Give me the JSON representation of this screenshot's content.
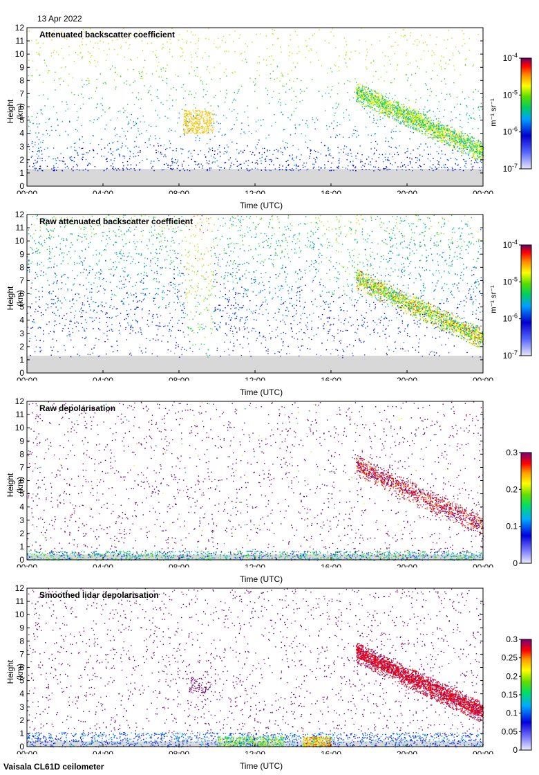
{
  "date": "13 Apr 2022",
  "footer": "Vaisala CL61D ceilometer",
  "chart_data": [
    {
      "type": "heatmap",
      "title": "Attenuated backscatter coefficient",
      "xlabel": "Time (UTC)",
      "ylabel": "Height (km)",
      "x_ticks": [
        "00:00",
        "04:00",
        "08:00",
        "12:00",
        "16:00",
        "20:00",
        "00:00"
      ],
      "y_ticks": [
        "0",
        "1",
        "2",
        "3",
        "4",
        "5",
        "6",
        "7",
        "8",
        "9",
        "10",
        "11",
        "12"
      ],
      "xlim": [
        0,
        24
      ],
      "ylim": [
        0,
        12
      ],
      "colorbar": {
        "scale": "log",
        "range": [
          1e-07,
          0.0001
        ],
        "ticks": [
          {
            "base": "10",
            "exp": "-4"
          },
          {
            "base": "10",
            "exp": "-5"
          },
          {
            "base": "10",
            "exp": "-6"
          },
          {
            "base": "10",
            "exp": "-7"
          }
        ],
        "unit": "m⁻¹ sr⁻¹"
      },
      "features": [
        {
          "t_start": 17.5,
          "t_end": 24.0,
          "h_start": 7.5,
          "h_end": 2.5,
          "intensity": "1e-6 to 1e-4",
          "desc": "descending cloud layer"
        },
        {
          "t_start": 8.0,
          "t_end": 9.8,
          "h_start": 4.0,
          "h_end": 6.0,
          "intensity": "~1e-5",
          "desc": "thin cloud patch"
        }
      ]
    },
    {
      "type": "heatmap",
      "title": "Raw attenuated backscatter coefficient",
      "xlabel": "Time (UTC)",
      "ylabel": "Height (km)",
      "x_ticks": [
        "00:00",
        "04:00",
        "08:00",
        "12:00",
        "16:00",
        "20:00",
        "00:00"
      ],
      "y_ticks": [
        "0",
        "1",
        "2",
        "3",
        "4",
        "5",
        "6",
        "7",
        "8",
        "9",
        "10",
        "11",
        "12"
      ],
      "xlim": [
        0,
        24
      ],
      "ylim": [
        0,
        12
      ],
      "colorbar": {
        "scale": "log",
        "range": [
          1e-07,
          0.0001
        ],
        "ticks": [
          {
            "base": "10",
            "exp": "-4"
          },
          {
            "base": "10",
            "exp": "-5"
          },
          {
            "base": "10",
            "exp": "-6"
          },
          {
            "base": "10",
            "exp": "-7"
          }
        ],
        "unit": "m⁻¹ sr⁻¹"
      }
    },
    {
      "type": "heatmap",
      "title": "Raw depolarisation",
      "xlabel": "Time (UTC)",
      "ylabel": "Height (km)",
      "x_ticks": [
        "00:00",
        "04:00",
        "08:00",
        "12:00",
        "16:00",
        "20:00",
        "00:00"
      ],
      "y_ticks": [
        "0",
        "1",
        "2",
        "3",
        "4",
        "5",
        "6",
        "7",
        "8",
        "9",
        "10",
        "11",
        "12"
      ],
      "xlim": [
        0,
        24
      ],
      "ylim": [
        0,
        12
      ],
      "colorbar": {
        "scale": "linear",
        "range": [
          0,
          0.3
        ],
        "ticks": [
          "0.3",
          "0.2",
          "0.1",
          "0"
        ]
      }
    },
    {
      "type": "heatmap",
      "title": "Smoothed lidar depolarisation",
      "xlabel": "Time (UTC)",
      "ylabel": "Height (km)",
      "x_ticks": [
        "00:00",
        "04:00",
        "08:00",
        "12:00",
        "16:00",
        "20:00",
        "00:00"
      ],
      "y_ticks": [
        "0",
        "1",
        "2",
        "3",
        "4",
        "5",
        "6",
        "7",
        "8",
        "9",
        "10",
        "11",
        "12"
      ],
      "xlim": [
        0,
        24
      ],
      "ylim": [
        0,
        12
      ],
      "colorbar": {
        "scale": "linear",
        "range": [
          0,
          0.3
        ],
        "ticks": [
          "0.3",
          "0.25",
          "0.2",
          "0.15",
          "0.1",
          "0.05",
          "0"
        ]
      }
    }
  ]
}
